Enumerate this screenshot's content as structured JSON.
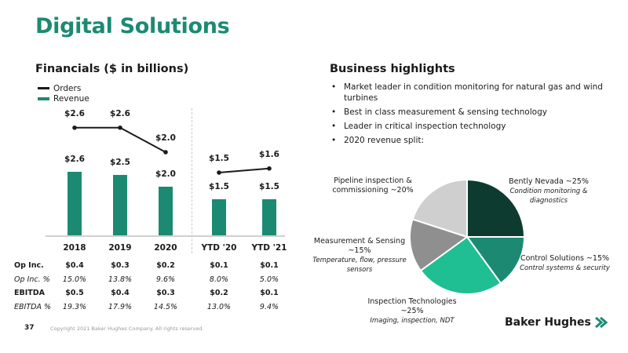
{
  "page_title": "Digital Solutions",
  "financials": {
    "title": "Financials ($ in billions)",
    "legend": [
      {
        "label": "Orders",
        "color": "#1a1a1a"
      },
      {
        "label": "Revenue",
        "color": "#1c8a73"
      }
    ],
    "metrics": [
      {
        "label": "Op Inc.",
        "style": "bold",
        "values": [
          "$0.4",
          "$0.3",
          "$0.2",
          "$0.1",
          "$0.1"
        ]
      },
      {
        "label": "Op Inc. %",
        "style": "italic",
        "values": [
          "15.0%",
          "13.8%",
          "9.6%",
          "8.0%",
          "5.0%"
        ]
      },
      {
        "label": "EBITDA",
        "style": "bold",
        "values": [
          "$0.5",
          "$0.4",
          "$0.3",
          "$0.2",
          "$0.1"
        ]
      },
      {
        "label": "EBITDA %",
        "style": "italic",
        "values": [
          "19.3%",
          "17.9%",
          "14.5%",
          "13.0%",
          "9.4%"
        ]
      }
    ]
  },
  "highlights": {
    "title": "Business highlights",
    "bullet": "•",
    "items": [
      "Market leader in condition monitoring for natural gas and wind turbines",
      "Best in class measurement & sensing technology",
      "Leader in critical inspection technology",
      "2020 revenue split:"
    ]
  },
  "chart_data": [
    {
      "type": "bar",
      "title": "",
      "categories": [
        "2018",
        "2019",
        "2020",
        "YTD '20",
        "YTD '21"
      ],
      "series": [
        {
          "name": "Revenue",
          "values": [
            2.6,
            2.5,
            2.0,
            1.5,
            1.5
          ],
          "labels": [
            "$2.6",
            "$2.5",
            "$2.0",
            "$1.5",
            "$1.5"
          ],
          "color": "#1c8a73"
        },
        {
          "name": "Orders",
          "values": [
            2.6,
            2.6,
            2.0,
            1.5,
            1.6
          ],
          "labels": [
            "$2.6",
            "$2.6",
            "$2.0",
            "$1.5",
            "$1.6"
          ],
          "color": "#1a1a1a",
          "render": "line",
          "groups": [
            [
              0,
              1,
              2
            ],
            [
              3,
              4
            ]
          ]
        }
      ],
      "grid": false,
      "legend": "top-left"
    },
    {
      "type": "pie",
      "slices": [
        {
          "label": "Bently Nevada ~25%",
          "sub": "Condition monitoring & diagnostics",
          "value": 25,
          "color": "#0d3b30"
        },
        {
          "label": "Control Solutions ~15%",
          "sub": "Control systems & security",
          "value": 15,
          "color": "#1c8a73"
        },
        {
          "label": "Inspection Technologies ~25%",
          "sub": "Imaging, inspection, NDT",
          "value": 25,
          "color": "#1fbf93"
        },
        {
          "label": "Measurement & Sensing ~15%",
          "sub": "Temperature, flow, pressure sensors",
          "value": 15,
          "color": "#8f8f8f"
        },
        {
          "label": "Pipeline inspection & commissioning ~20%",
          "sub": "",
          "value": 20,
          "color": "#cfcfcf"
        }
      ]
    }
  ],
  "pie_labels": {
    "bently_1": "Bently Nevada ~25%",
    "bently_2": "Condition monitoring &",
    "bently_3": "diagnostics",
    "control_1": "Control Solutions ~15%",
    "control_2": "Control systems & security",
    "inspection_1": "Inspection Technologies",
    "inspection_2": "~25%",
    "inspection_3": "Imaging, inspection, NDT",
    "measurement_1": "Measurement & Sensing",
    "measurement_2": "~15%",
    "measurement_3": "Temperature, flow, pressure",
    "measurement_4": "sensors",
    "pipeline_1": "Pipeline inspection &",
    "pipeline_2": "commissioning ~20%"
  },
  "footer": {
    "page_number": "37",
    "copyright": "Copyright 2021 Baker Hughes Company. All rights reserved."
  },
  "logo": {
    "text": "Baker Hughes",
    "icon": "baker-hughes-chevron-icon",
    "color": "#1c8a73"
  }
}
